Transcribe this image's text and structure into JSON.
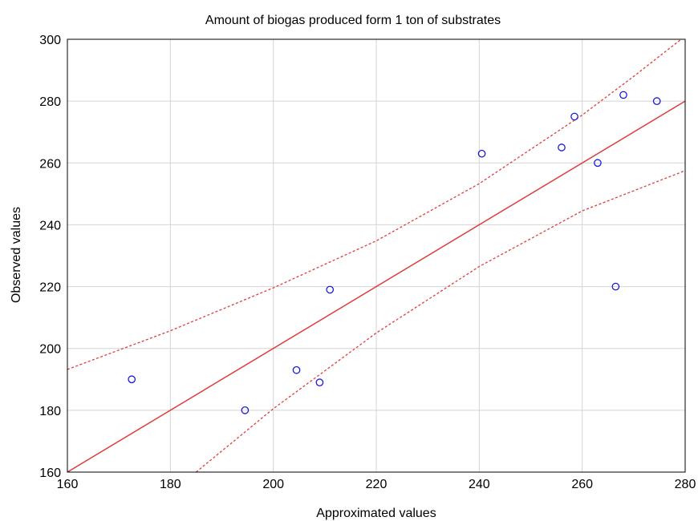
{
  "chart_data": {
    "type": "scatter",
    "title": "Amount of biogas produced form 1 ton of substrates",
    "xlabel": "Approximated values",
    "ylabel": "Observed values",
    "xlim": [
      160,
      280
    ],
    "ylim": [
      160,
      300
    ],
    "xticks": [
      160,
      180,
      200,
      220,
      240,
      260,
      280
    ],
    "yticks": [
      160,
      180,
      200,
      220,
      240,
      260,
      280,
      300
    ],
    "grid": true,
    "points": [
      {
        "x": 172.5,
        "y": 190
      },
      {
        "x": 194.5,
        "y": 180
      },
      {
        "x": 204.5,
        "y": 193
      },
      {
        "x": 209,
        "y": 189
      },
      {
        "x": 211,
        "y": 219
      },
      {
        "x": 240.5,
        "y": 263
      },
      {
        "x": 256,
        "y": 265
      },
      {
        "x": 258.5,
        "y": 275
      },
      {
        "x": 263,
        "y": 260
      },
      {
        "x": 266.5,
        "y": 220
      },
      {
        "x": 268,
        "y": 282
      },
      {
        "x": 274.5,
        "y": 280
      }
    ],
    "fit_line": {
      "from": [
        160,
        160
      ],
      "to": [
        280,
        280
      ]
    },
    "confidence_upper": [
      {
        "x": 160,
        "y": 193.2
      },
      {
        "x": 180,
        "y": 205.7
      },
      {
        "x": 200,
        "y": 219.6
      },
      {
        "x": 220,
        "y": 234.8
      },
      {
        "x": 240,
        "y": 253.3
      },
      {
        "x": 260,
        "y": 275.5
      },
      {
        "x": 270,
        "y": 288
      },
      {
        "x": 280,
        "y": 301
      }
    ],
    "confidence_lower": [
      {
        "x": 185,
        "y": 160
      },
      {
        "x": 200,
        "y": 180.5
      },
      {
        "x": 220,
        "y": 205
      },
      {
        "x": 240,
        "y": 226.5
      },
      {
        "x": 260,
        "y": 244.5
      },
      {
        "x": 280,
        "y": 257.5
      }
    ],
    "colors": {
      "points": "#1a1ad6",
      "fit_line": "#e03c3c",
      "confidence": "#e03c3c",
      "grid": "#d4d4d4",
      "frame": "#000000"
    }
  }
}
